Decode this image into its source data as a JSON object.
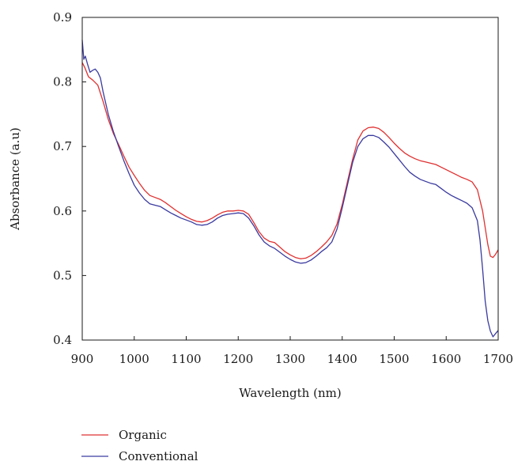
{
  "chart_data": {
    "type": "line",
    "title": "",
    "xlabel": "Wavelength (nm)",
    "ylabel": "Absorbance (a.u)",
    "xlim": [
      900,
      1700
    ],
    "ylim": [
      0.4,
      0.9
    ],
    "x_ticks": [
      900,
      1000,
      1100,
      1200,
      1300,
      1400,
      1500,
      1600,
      1700
    ],
    "y_ticks": [
      0.4,
      0.5,
      0.6,
      0.7,
      0.8,
      0.9
    ],
    "x_tick_labels": [
      "900",
      "1000",
      "1100",
      "1200",
      "1300",
      "1400",
      "1500",
      "1600",
      "1700"
    ],
    "y_tick_labels": [
      "0.4",
      "0.5",
      "0.6",
      "0.7",
      "0.8",
      "0.9"
    ],
    "grid": false,
    "legend_position": "bottom-left",
    "series": [
      {
        "name": "Organic",
        "color": "#e03030",
        "points": [
          [
            900,
            0.83
          ],
          [
            905,
            0.822
          ],
          [
            912,
            0.808
          ],
          [
            920,
            0.803
          ],
          [
            930,
            0.795
          ],
          [
            940,
            0.77
          ],
          [
            950,
            0.742
          ],
          [
            960,
            0.72
          ],
          [
            970,
            0.703
          ],
          [
            980,
            0.685
          ],
          [
            990,
            0.668
          ],
          [
            1000,
            0.655
          ],
          [
            1010,
            0.643
          ],
          [
            1020,
            0.632
          ],
          [
            1030,
            0.624
          ],
          [
            1040,
            0.621
          ],
          [
            1050,
            0.618
          ],
          [
            1060,
            0.613
          ],
          [
            1070,
            0.607
          ],
          [
            1080,
            0.601
          ],
          [
            1090,
            0.596
          ],
          [
            1100,
            0.591
          ],
          [
            1110,
            0.587
          ],
          [
            1120,
            0.584
          ],
          [
            1130,
            0.583
          ],
          [
            1140,
            0.585
          ],
          [
            1150,
            0.589
          ],
          [
            1160,
            0.594
          ],
          [
            1170,
            0.598
          ],
          [
            1180,
            0.6
          ],
          [
            1190,
            0.6
          ],
          [
            1200,
            0.601
          ],
          [
            1210,
            0.6
          ],
          [
            1220,
            0.595
          ],
          [
            1230,
            0.582
          ],
          [
            1240,
            0.568
          ],
          [
            1250,
            0.558
          ],
          [
            1260,
            0.553
          ],
          [
            1270,
            0.551
          ],
          [
            1280,
            0.544
          ],
          [
            1290,
            0.537
          ],
          [
            1300,
            0.532
          ],
          [
            1310,
            0.528
          ],
          [
            1320,
            0.526
          ],
          [
            1330,
            0.527
          ],
          [
            1340,
            0.531
          ],
          [
            1350,
            0.537
          ],
          [
            1360,
            0.544
          ],
          [
            1370,
            0.552
          ],
          [
            1380,
            0.562
          ],
          [
            1390,
            0.58
          ],
          [
            1400,
            0.61
          ],
          [
            1410,
            0.645
          ],
          [
            1420,
            0.68
          ],
          [
            1430,
            0.71
          ],
          [
            1440,
            0.724
          ],
          [
            1450,
            0.729
          ],
          [
            1460,
            0.73
          ],
          [
            1470,
            0.728
          ],
          [
            1480,
            0.722
          ],
          [
            1490,
            0.714
          ],
          [
            1500,
            0.705
          ],
          [
            1510,
            0.697
          ],
          [
            1520,
            0.69
          ],
          [
            1530,
            0.685
          ],
          [
            1540,
            0.681
          ],
          [
            1550,
            0.678
          ],
          [
            1560,
            0.676
          ],
          [
            1570,
            0.674
          ],
          [
            1580,
            0.672
          ],
          [
            1590,
            0.668
          ],
          [
            1600,
            0.664
          ],
          [
            1610,
            0.66
          ],
          [
            1620,
            0.656
          ],
          [
            1630,
            0.652
          ],
          [
            1640,
            0.649
          ],
          [
            1650,
            0.645
          ],
          [
            1660,
            0.633
          ],
          [
            1670,
            0.6
          ],
          [
            1680,
            0.548
          ],
          [
            1685,
            0.53
          ],
          [
            1690,
            0.528
          ],
          [
            1695,
            0.533
          ],
          [
            1700,
            0.54
          ]
        ]
      },
      {
        "name": "Conventional",
        "color": "#3a3aa0",
        "points": [
          [
            900,
            0.865
          ],
          [
            903,
            0.835
          ],
          [
            906,
            0.84
          ],
          [
            910,
            0.828
          ],
          [
            915,
            0.815
          ],
          [
            920,
            0.818
          ],
          [
            925,
            0.82
          ],
          [
            930,
            0.815
          ],
          [
            935,
            0.806
          ],
          [
            940,
            0.785
          ],
          [
            950,
            0.75
          ],
          [
            960,
            0.723
          ],
          [
            970,
            0.7
          ],
          [
            980,
            0.678
          ],
          [
            990,
            0.658
          ],
          [
            1000,
            0.64
          ],
          [
            1010,
            0.628
          ],
          [
            1020,
            0.618
          ],
          [
            1030,
            0.611
          ],
          [
            1040,
            0.609
          ],
          [
            1050,
            0.607
          ],
          [
            1060,
            0.602
          ],
          [
            1070,
            0.597
          ],
          [
            1080,
            0.593
          ],
          [
            1090,
            0.589
          ],
          [
            1100,
            0.586
          ],
          [
            1110,
            0.583
          ],
          [
            1120,
            0.579
          ],
          [
            1130,
            0.578
          ],
          [
            1140,
            0.579
          ],
          [
            1150,
            0.583
          ],
          [
            1160,
            0.589
          ],
          [
            1170,
            0.593
          ],
          [
            1180,
            0.595
          ],
          [
            1190,
            0.596
          ],
          [
            1200,
            0.597
          ],
          [
            1210,
            0.596
          ],
          [
            1220,
            0.589
          ],
          [
            1230,
            0.577
          ],
          [
            1240,
            0.563
          ],
          [
            1250,
            0.552
          ],
          [
            1260,
            0.546
          ],
          [
            1270,
            0.542
          ],
          [
            1280,
            0.536
          ],
          [
            1290,
            0.53
          ],
          [
            1300,
            0.525
          ],
          [
            1310,
            0.521
          ],
          [
            1320,
            0.519
          ],
          [
            1330,
            0.52
          ],
          [
            1340,
            0.524
          ],
          [
            1350,
            0.53
          ],
          [
            1360,
            0.537
          ],
          [
            1370,
            0.543
          ],
          [
            1380,
            0.552
          ],
          [
            1390,
            0.572
          ],
          [
            1400,
            0.605
          ],
          [
            1410,
            0.64
          ],
          [
            1420,
            0.675
          ],
          [
            1430,
            0.7
          ],
          [
            1440,
            0.712
          ],
          [
            1450,
            0.717
          ],
          [
            1460,
            0.717
          ],
          [
            1470,
            0.714
          ],
          [
            1480,
            0.707
          ],
          [
            1490,
            0.699
          ],
          [
            1500,
            0.689
          ],
          [
            1510,
            0.679
          ],
          [
            1520,
            0.669
          ],
          [
            1530,
            0.66
          ],
          [
            1540,
            0.654
          ],
          [
            1550,
            0.649
          ],
          [
            1560,
            0.646
          ],
          [
            1570,
            0.643
          ],
          [
            1580,
            0.641
          ],
          [
            1590,
            0.635
          ],
          [
            1600,
            0.629
          ],
          [
            1610,
            0.624
          ],
          [
            1620,
            0.62
          ],
          [
            1630,
            0.616
          ],
          [
            1640,
            0.612
          ],
          [
            1650,
            0.605
          ],
          [
            1660,
            0.585
          ],
          [
            1665,
            0.555
          ],
          [
            1670,
            0.51
          ],
          [
            1675,
            0.46
          ],
          [
            1680,
            0.43
          ],
          [
            1685,
            0.414
          ],
          [
            1690,
            0.405
          ],
          [
            1695,
            0.41
          ],
          [
            1700,
            0.415
          ]
        ]
      }
    ]
  }
}
